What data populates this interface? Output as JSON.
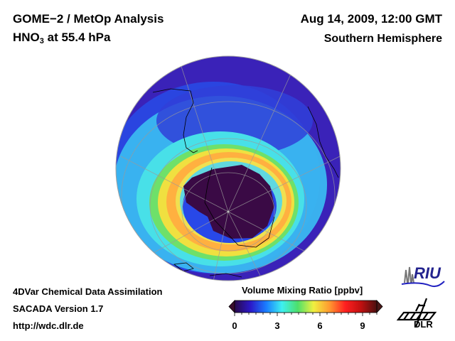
{
  "header": {
    "title": "GOME−2 / MetOp Analysis",
    "species": "HNO",
    "species_sub": "3",
    "level": " at 55.4 hPa",
    "date": "Aug 14, 2009, 12:00 GMT",
    "region": "Southern Hemisphere"
  },
  "footer": {
    "line1": "4DVar Chemical Data Assimilation",
    "line2": "SACADA Version 1.7",
    "line3": "http://wdc.dlr.de"
  },
  "colorbar": {
    "title": "Volume Mixing Ratio [ppbv]",
    "ticks": [
      "0",
      "3",
      "6",
      "9"
    ],
    "range": [
      0,
      10
    ],
    "colors": [
      "#2a0a4a",
      "#2b18c8",
      "#1a7dff",
      "#3ef0f0",
      "#4de06a",
      "#f0f040",
      "#ff9a30",
      "#ff2020",
      "#c01010",
      "#4a1010"
    ]
  },
  "logos": {
    "riu": "RIU",
    "dlr": "DLR"
  },
  "chart_data": {
    "type": "heatmap",
    "title": "GOME−2 / MetOp Analysis — HNO3 at 55.4 hPa",
    "projection": "orthographic, Southern Hemisphere",
    "variable": "HNO3 volume mixing ratio",
    "units": "ppbv",
    "colorbar_range": [
      0,
      10
    ],
    "colorbar_ticks": [
      0,
      3,
      6,
      9
    ],
    "features": [
      {
        "name": "polar vortex core (denitrified)",
        "value_ppbv": 0.3
      },
      {
        "name": "vortex edge ring",
        "value_ppbv": 6.5
      },
      {
        "name": "outer collar",
        "value_ppbv": 4.0
      },
      {
        "name": "mid latitudes",
        "value_ppbv": 2.5
      },
      {
        "name": "subtropics",
        "value_ppbv": 1.0
      }
    ]
  }
}
